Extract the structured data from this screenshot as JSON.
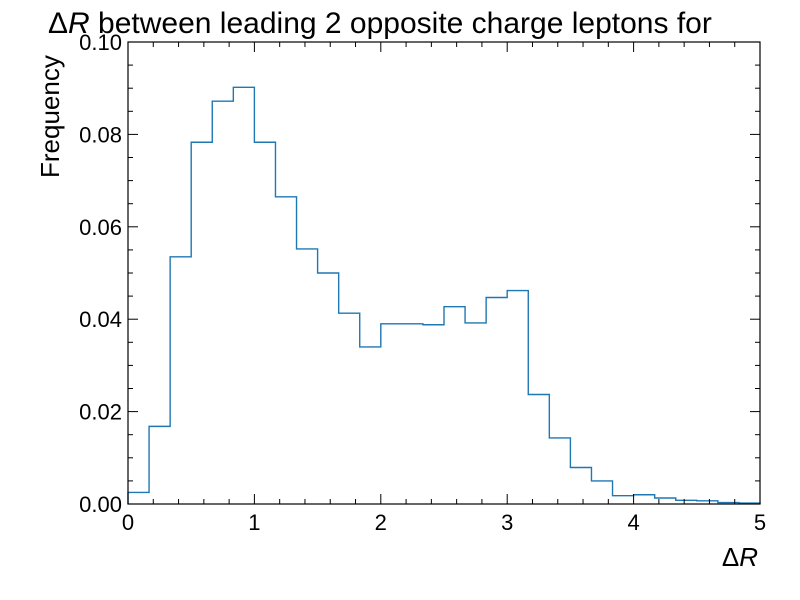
{
  "chart_data": {
    "type": "histogram",
    "title": {
      "prefix": "Δ",
      "var": "R",
      "suffix": " between leading 2 opposite charge leptons for"
    },
    "xlabel": {
      "prefix": "Δ",
      "var": "R"
    },
    "ylabel": "Frequency",
    "xlim": [
      0,
      5
    ],
    "ylim": [
      0,
      0.1
    ],
    "xticks": [
      0,
      1,
      2,
      3,
      4,
      5
    ],
    "xtick_labels": [
      "0",
      "1",
      "2",
      "3",
      "4",
      "5"
    ],
    "yticks": [
      0,
      0.02,
      0.04,
      0.06,
      0.08,
      0.1
    ],
    "ytick_labels": [
      "0.00",
      "0.02",
      "0.04",
      "0.06",
      "0.08",
      "0.10"
    ],
    "bin_edges": [
      0,
      0.1667,
      0.3333,
      0.5,
      0.6667,
      0.8333,
      1.0,
      1.1667,
      1.3333,
      1.5,
      1.6667,
      1.8333,
      2.0,
      2.1667,
      2.3333,
      2.5,
      2.6667,
      2.8333,
      3.0,
      3.1667,
      3.3333,
      3.5,
      3.6667,
      3.8333,
      4.0,
      4.1667,
      4.3333,
      4.5,
      4.6667,
      4.8333,
      5.0
    ],
    "values": [
      0.0025,
      0.0168,
      0.0535,
      0.0783,
      0.0872,
      0.0902,
      0.0783,
      0.0665,
      0.0552,
      0.05,
      0.0413,
      0.034,
      0.039,
      0.039,
      0.0388,
      0.0427,
      0.0392,
      0.0447,
      0.0462,
      0.0237,
      0.0143,
      0.0079,
      0.005,
      0.0018,
      0.002,
      0.0013,
      0.0008,
      0.0007,
      0.0003,
      0.0002
    ],
    "line_color": "#1f77b4",
    "grid": false,
    "legend": "none"
  }
}
